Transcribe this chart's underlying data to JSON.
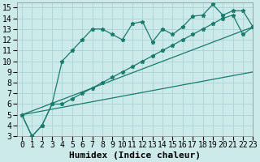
{
  "xlabel": "Humidex (Indice chaleur)",
  "ylabel": "",
  "xlim": [
    -0.5,
    23
  ],
  "ylim": [
    3,
    15.5
  ],
  "xticks": [
    0,
    1,
    2,
    3,
    4,
    5,
    6,
    7,
    8,
    9,
    10,
    11,
    12,
    13,
    14,
    15,
    16,
    17,
    18,
    19,
    20,
    21,
    22,
    23
  ],
  "yticks": [
    3,
    4,
    5,
    6,
    7,
    8,
    9,
    10,
    11,
    12,
    13,
    14,
    15
  ],
  "bg_color": "#cceaea",
  "grid_color": "#aad4d4",
  "line_color": "#1a7a6e",
  "series": [
    {
      "x": [
        0,
        1,
        2,
        3,
        4,
        5,
        6,
        7,
        8,
        9,
        10,
        11,
        12,
        13,
        14,
        15,
        16,
        17,
        18,
        19,
        20,
        21,
        22,
        23
      ],
      "y": [
        5,
        3,
        4,
        6,
        10,
        11,
        12,
        13,
        13,
        12.5,
        12,
        13.5,
        13.7,
        11.8,
        13,
        12.5,
        13.2,
        14.2,
        14.3,
        15.3,
        14.3,
        14.7,
        14.7,
        13.2
      ],
      "ls": "-",
      "marker": true
    },
    {
      "x": [
        0,
        1,
        2,
        3,
        4,
        5,
        6,
        7,
        8,
        9,
        10,
        11,
        12,
        13,
        14,
        15,
        16,
        17,
        18,
        19,
        20,
        21,
        22,
        23
      ],
      "y": [
        5,
        3,
        4,
        6,
        6,
        6.5,
        7.0,
        7.5,
        8.0,
        8.5,
        9.0,
        9.5,
        10.0,
        10.5,
        11.0,
        11.5,
        12.0,
        12.5,
        13.0,
        13.5,
        14.0,
        14.3,
        12.5,
        13.2
      ],
      "ls": "-",
      "marker": true
    },
    {
      "x": [
        0,
        23
      ],
      "y": [
        5,
        13.2
      ],
      "ls": "-",
      "marker": false
    },
    {
      "x": [
        0,
        23
      ],
      "y": [
        5,
        9.0
      ],
      "ls": "-",
      "marker": false
    }
  ],
  "font_size": 7,
  "xlabel_font_size": 8
}
